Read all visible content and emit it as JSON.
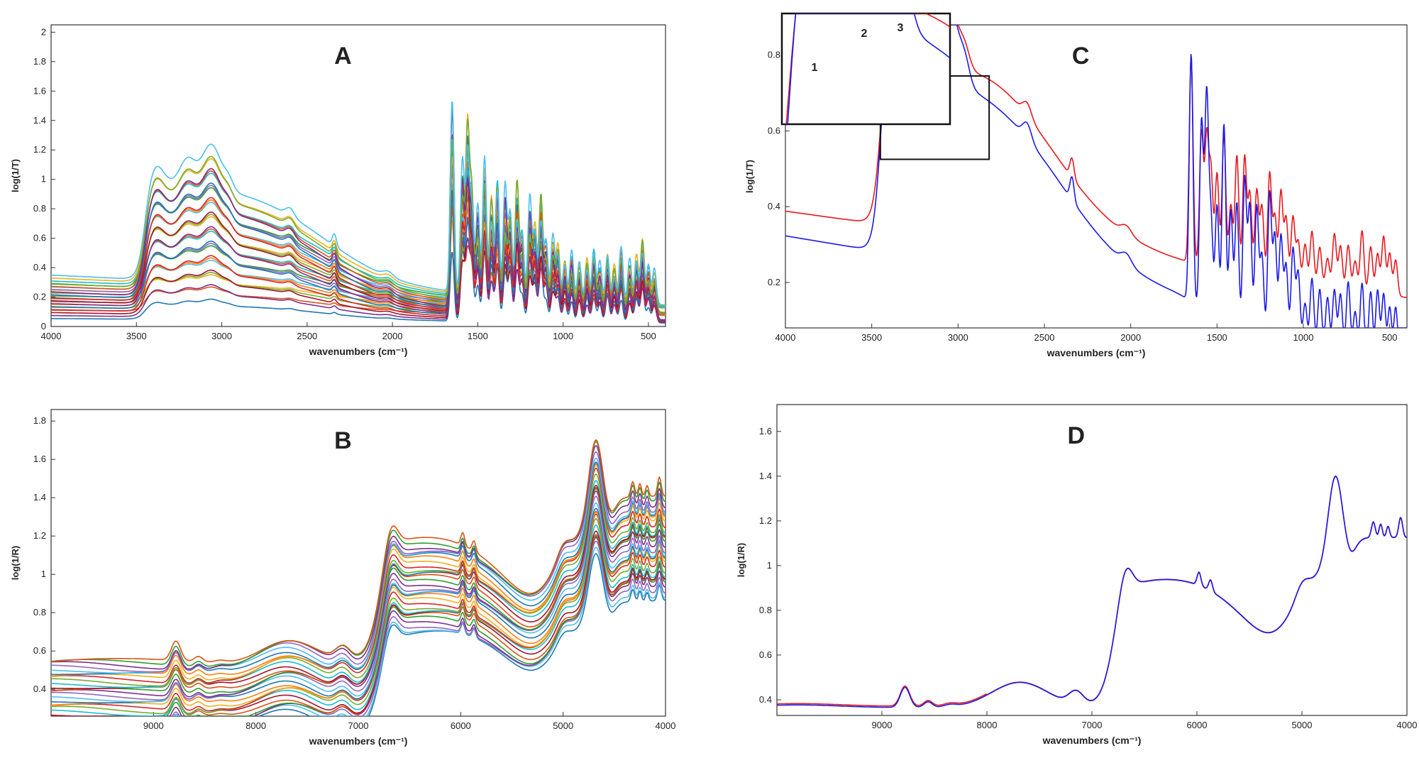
{
  "colors": {
    "panel_c_red": "#e8181e",
    "panel_c_blue": "#1a1ae6",
    "palette": [
      "#1f77b4",
      "#d95319",
      "#edb120",
      "#7e2f8e",
      "#77ac30",
      "#4dbeee",
      "#a2142f",
      "#ff7f0e",
      "#2ca02c",
      "#d62728",
      "#9467bd",
      "#17becf"
    ]
  },
  "chart_data": [
    {
      "id": "A",
      "type": "line",
      "letter": "A",
      "xlabel": "wavenumbers (cm⁻¹)",
      "ylabel": "log(1/T)",
      "xlim": [
        4000,
        400
      ],
      "ylim": [
        0,
        2.05
      ],
      "xticks": [
        4000,
        3500,
        3000,
        2500,
        2000,
        1500,
        1000,
        500
      ],
      "yticks": [
        0,
        0.2,
        0.4,
        0.6,
        0.8,
        1,
        1.2,
        1.4,
        1.6,
        1.8,
        2
      ],
      "ytick_labels": [
        "0",
        "0.2",
        "0.4",
        "0.6",
        "0.8",
        "1",
        "1.2",
        "1.4",
        "1.6",
        "1.8",
        "2"
      ],
      "n_series": 30,
      "scale_min": 0.2,
      "scale_max": 1.35,
      "profile": "mir"
    },
    {
      "id": "B",
      "type": "line",
      "letter": "B",
      "xlabel": "wavenumbers (cm⁻¹)",
      "ylabel": "log(1/R)",
      "xlim": [
        10000,
        4000
      ],
      "ylim": [
        0.26,
        1.86
      ],
      "xticks": [
        9000,
        8000,
        7000,
        6000,
        5000,
        4000
      ],
      "yticks": [
        0.4,
        0.6,
        0.8,
        1,
        1.2,
        1.4,
        1.6,
        1.8
      ],
      "ytick_labels": [
        "0.4",
        "0.6",
        "0.8",
        "1",
        "1.2",
        "1.4",
        "1.6",
        "1.8"
      ],
      "n_series": 30,
      "scale_min": 0.9,
      "scale_max": 1.12,
      "profile": "nir"
    },
    {
      "id": "C",
      "type": "line",
      "letter": "C",
      "xlabel": "wavenumbers (cm⁻¹)",
      "ylabel": "log(1/T)",
      "xlim": [
        4000,
        400
      ],
      "ylim": [
        0.08,
        0.88
      ],
      "xticks": [
        4000,
        3500,
        3000,
        2500,
        2000,
        1500,
        1000,
        500
      ],
      "yticks": [
        0.2,
        0.4,
        0.6,
        0.8
      ],
      "ytick_labels": [
        "0.2",
        "0.4",
        "0.6",
        "0.8"
      ],
      "series": [
        {
          "color": "#e8181e",
          "profile": "mir_red"
        },
        {
          "color": "#1a1ae6",
          "profile": "mir_blue"
        }
      ],
      "inset": {
        "region_x": [
          3450,
          2820
        ],
        "region_y": [
          0.525,
          0.745
        ],
        "peak_labels": [
          "1",
          "2",
          "3"
        ]
      }
    },
    {
      "id": "D",
      "type": "line",
      "letter": "D",
      "xlabel": "wavenumbers (cm⁻¹)",
      "ylabel": "log(1/R)",
      "xlim": [
        10000,
        4000
      ],
      "ylim": [
        0.33,
        1.72
      ],
      "xticks": [
        9000,
        8000,
        7000,
        6000,
        5000,
        4000
      ],
      "yticks": [
        0.4,
        0.6,
        0.8,
        1,
        1.2,
        1.4,
        1.6
      ],
      "ytick_labels": [
        "0.4",
        "0.6",
        "0.8",
        "1",
        "1.2",
        "1.4",
        "1.6"
      ],
      "series": [
        {
          "color": "#e8181e",
          "profile": "nir",
          "offset": 0.006
        },
        {
          "color": "#1a1ae6",
          "profile": "nir",
          "offset": 0
        }
      ]
    }
  ]
}
